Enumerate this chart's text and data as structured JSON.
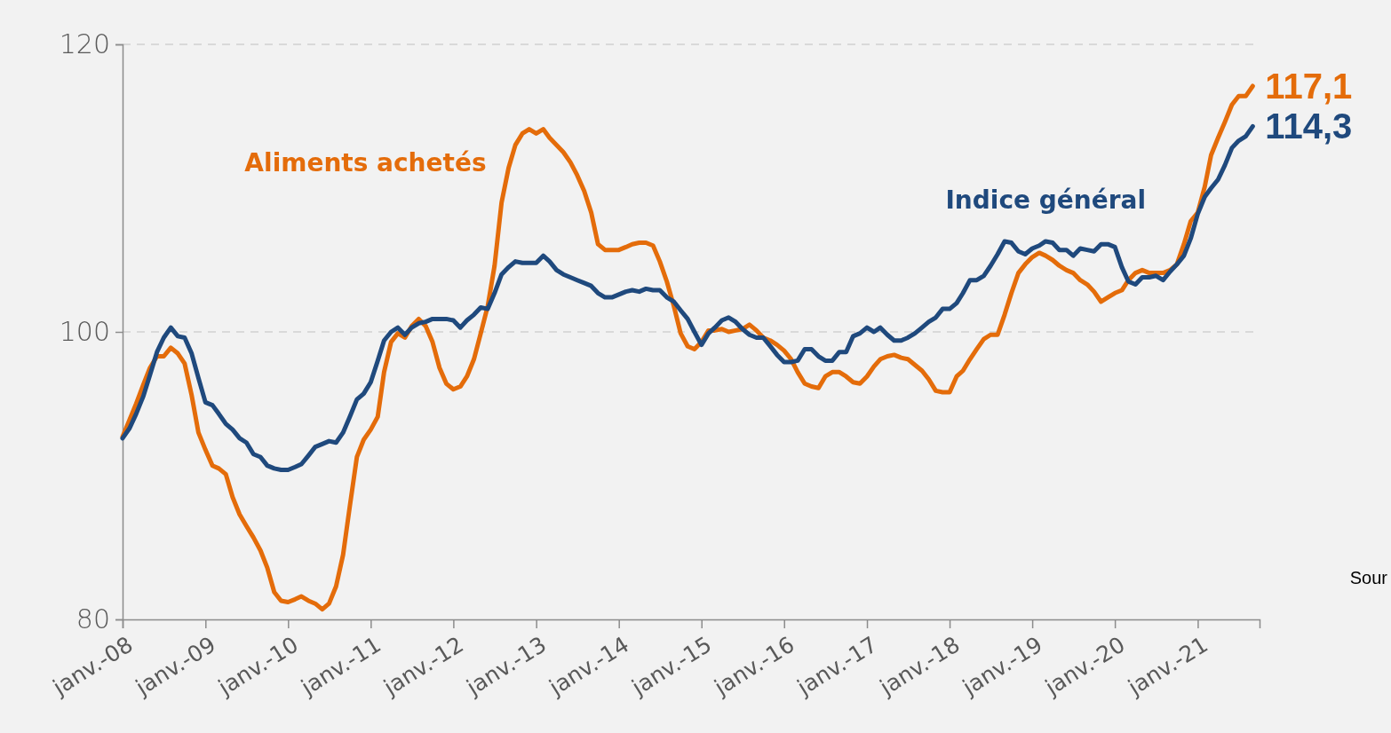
{
  "chart_data": {
    "type": "line",
    "x": [
      "2008-01",
      "2008-02",
      "2008-03",
      "2008-04",
      "2008-05",
      "2008-06",
      "2008-07",
      "2008-08",
      "2008-09",
      "2008-10",
      "2008-11",
      "2008-12",
      "2009-01",
      "2009-02",
      "2009-03",
      "2009-04",
      "2009-05",
      "2009-06",
      "2009-07",
      "2009-08",
      "2009-09",
      "2009-10",
      "2009-11",
      "2009-12",
      "2010-01",
      "2010-02",
      "2010-03",
      "2010-04",
      "2010-05",
      "2010-06",
      "2010-07",
      "2010-08",
      "2010-09",
      "2010-10",
      "2010-11",
      "2010-12",
      "2011-01",
      "2011-02",
      "2011-03",
      "2011-04",
      "2011-05",
      "2011-06",
      "2011-07",
      "2011-08",
      "2011-09",
      "2011-10",
      "2011-11",
      "2011-12",
      "2012-01",
      "2012-02",
      "2012-03",
      "2012-04",
      "2012-05",
      "2012-06",
      "2012-07",
      "2012-08",
      "2012-09",
      "2012-10",
      "2012-11",
      "2012-12",
      "2013-01",
      "2013-02",
      "2013-03",
      "2013-04",
      "2013-05",
      "2013-06",
      "2013-07",
      "2013-08",
      "2013-09",
      "2013-10",
      "2013-11",
      "2013-12",
      "2014-01",
      "2014-02",
      "2014-03",
      "2014-04",
      "2014-05",
      "2014-06",
      "2014-07",
      "2014-08",
      "2014-09",
      "2014-10",
      "2014-11",
      "2014-12",
      "2015-01",
      "2015-02",
      "2015-03",
      "2015-04",
      "2015-05",
      "2015-06",
      "2015-07",
      "2015-08",
      "2015-09",
      "2015-10",
      "2015-11",
      "2015-12",
      "2016-01",
      "2016-02",
      "2016-03",
      "2016-04",
      "2016-05",
      "2016-06",
      "2016-07",
      "2016-08",
      "2016-09",
      "2016-10",
      "2016-11",
      "2016-12",
      "2017-01",
      "2017-02",
      "2017-03",
      "2017-04",
      "2017-05",
      "2017-06",
      "2017-07",
      "2017-08",
      "2017-09",
      "2017-10",
      "2017-11",
      "2017-12",
      "2018-01",
      "2018-02",
      "2018-03",
      "2018-04",
      "2018-05",
      "2018-06",
      "2018-07",
      "2018-08",
      "2018-09",
      "2018-10",
      "2018-11",
      "2018-12",
      "2019-01",
      "2019-02",
      "2019-03",
      "2019-04",
      "2019-05",
      "2019-06",
      "2019-07",
      "2019-08",
      "2019-09",
      "2019-10",
      "2019-11",
      "2019-12",
      "2020-01",
      "2020-02",
      "2020-03",
      "2020-04",
      "2020-05",
      "2020-06",
      "2020-07",
      "2020-08",
      "2020-09",
      "2020-10",
      "2020-11",
      "2020-12",
      "2021-01",
      "2021-02",
      "2021-03",
      "2021-04",
      "2021-05",
      "2021-06",
      "2021-07",
      "2021-08",
      "2021-09"
    ],
    "series": [
      {
        "name": "Aliments achetés",
        "color": "#e46c0a",
        "values": [
          92.7,
          93.9,
          95.0,
          96.3,
          97.5,
          98.3,
          98.3,
          98.9,
          98.5,
          97.8,
          95.6,
          93.0,
          91.8,
          90.7,
          90.5,
          90.1,
          88.5,
          87.3,
          86.5,
          85.7,
          84.8,
          83.6,
          81.9,
          81.3,
          81.2,
          81.4,
          81.6,
          81.3,
          81.1,
          80.7,
          81.1,
          82.3,
          84.5,
          87.9,
          91.3,
          92.5,
          93.2,
          94.1,
          97.2,
          99.3,
          99.9,
          99.6,
          100.4,
          100.9,
          100.4,
          99.3,
          97.5,
          96.4,
          96.0,
          96.2,
          96.9,
          98.1,
          99.9,
          101.8,
          104.6,
          109.0,
          111.4,
          113.0,
          113.8,
          114.1,
          113.8,
          114.1,
          113.5,
          113.0,
          112.5,
          111.8,
          110.9,
          109.8,
          108.3,
          106.1,
          105.7,
          105.7,
          105.7,
          105.9,
          106.1,
          106.2,
          106.2,
          106.0,
          104.9,
          103.5,
          101.8,
          99.9,
          99.0,
          98.8,
          99.3,
          100.1,
          100.1,
          100.2,
          100.0,
          100.1,
          100.2,
          100.5,
          100.1,
          99.6,
          99.4,
          99.1,
          98.7,
          98.1,
          97.2,
          96.4,
          96.2,
          96.1,
          96.9,
          97.2,
          97.2,
          96.9,
          96.5,
          96.4,
          96.9,
          97.6,
          98.1,
          98.3,
          98.4,
          98.2,
          98.1,
          97.7,
          97.3,
          96.7,
          95.9,
          95.8,
          95.8,
          96.9,
          97.3,
          98.1,
          98.8,
          99.5,
          99.8,
          99.8,
          101.2,
          102.7,
          104.1,
          104.7,
          105.2,
          105.5,
          105.3,
          105.0,
          104.6,
          104.3,
          104.1,
          103.6,
          103.3,
          102.8,
          102.1,
          102.4,
          102.7,
          102.9,
          103.6,
          104.1,
          104.3,
          104.1,
          104.1,
          104.1,
          104.3,
          104.7,
          106.1,
          107.7,
          108.3,
          110.1,
          112.3,
          113.5,
          114.6,
          115.8,
          116.4,
          116.4,
          117.1
        ]
      },
      {
        "name": "Indice général",
        "color": "#1f497d",
        "values": [
          92.6,
          93.3,
          94.3,
          95.5,
          97.0,
          98.6,
          99.6,
          100.3,
          99.7,
          99.6,
          98.5,
          96.8,
          95.1,
          94.9,
          94.3,
          93.6,
          93.2,
          92.6,
          92.3,
          91.5,
          91.3,
          90.7,
          90.5,
          90.4,
          90.4,
          90.6,
          90.8,
          91.4,
          92.0,
          92.2,
          92.4,
          92.3,
          93.0,
          94.1,
          95.3,
          95.7,
          96.5,
          98.0,
          99.4,
          100.0,
          100.3,
          99.8,
          100.3,
          100.6,
          100.7,
          100.9,
          100.9,
          100.9,
          100.8,
          100.3,
          100.8,
          101.2,
          101.7,
          101.6,
          102.7,
          104.0,
          104.5,
          104.9,
          104.8,
          104.8,
          104.8,
          105.3,
          104.9,
          104.3,
          104.0,
          103.8,
          103.6,
          103.4,
          103.2,
          102.7,
          102.4,
          102.4,
          102.6,
          102.8,
          102.9,
          102.8,
          103.0,
          102.9,
          102.9,
          102.4,
          102.1,
          101.5,
          100.9,
          100.0,
          99.1,
          99.9,
          100.3,
          100.8,
          101.0,
          100.7,
          100.2,
          99.8,
          99.6,
          99.6,
          99.0,
          98.4,
          97.9,
          97.9,
          98.0,
          98.8,
          98.8,
          98.3,
          98.0,
          98.0,
          98.6,
          98.6,
          99.7,
          99.9,
          100.3,
          100.0,
          100.3,
          99.8,
          99.4,
          99.4,
          99.6,
          99.9,
          100.3,
          100.7,
          101.0,
          101.6,
          101.6,
          102.0,
          102.7,
          103.6,
          103.6,
          103.9,
          104.6,
          105.4,
          106.3,
          106.2,
          105.6,
          105.4,
          105.8,
          106.0,
          106.3,
          106.2,
          105.7,
          105.7,
          105.3,
          105.8,
          105.7,
          105.6,
          106.1,
          106.1,
          105.9,
          104.5,
          103.5,
          103.3,
          103.8,
          103.8,
          103.9,
          103.6,
          104.2,
          104.7,
          105.3,
          106.5,
          108.2,
          109.4,
          110.0,
          110.6,
          111.6,
          112.8,
          113.3,
          113.6,
          114.3
        ]
      }
    ],
    "xlim": [
      "2008-01",
      "2021-10"
    ],
    "xticks": [
      {
        "value": "2008-01",
        "label": "janv.-08"
      },
      {
        "value": "2009-01",
        "label": "janv.-09"
      },
      {
        "value": "2010-01",
        "label": "janv.-10"
      },
      {
        "value": "2011-01",
        "label": "janv.-11"
      },
      {
        "value": "2012-01",
        "label": "janv.-12"
      },
      {
        "value": "2013-01",
        "label": "janv.-13"
      },
      {
        "value": "2014-01",
        "label": "janv.-14"
      },
      {
        "value": "2015-01",
        "label": "janv.-15"
      },
      {
        "value": "2016-01",
        "label": "janv.-16"
      },
      {
        "value": "2017-01",
        "label": "janv.-17"
      },
      {
        "value": "2018-01",
        "label": "janv.-18"
      },
      {
        "value": "2019-01",
        "label": "janv.-19"
      },
      {
        "value": "2020-01",
        "label": "janv.-20"
      },
      {
        "value": "2021-01",
        "label": "janv.-21"
      }
    ],
    "ylim": [
      80,
      120
    ],
    "yticks": [
      80,
      100,
      120
    ],
    "grid": "y",
    "legend": false,
    "line_style": "solid",
    "marker": "none",
    "annotations": [
      {
        "text": "117,1",
        "x": "2021-09",
        "y": 117.1
      },
      {
        "text": "114,3",
        "x": "2021-09",
        "y": 114.3
      },
      "Sour"
    ]
  }
}
